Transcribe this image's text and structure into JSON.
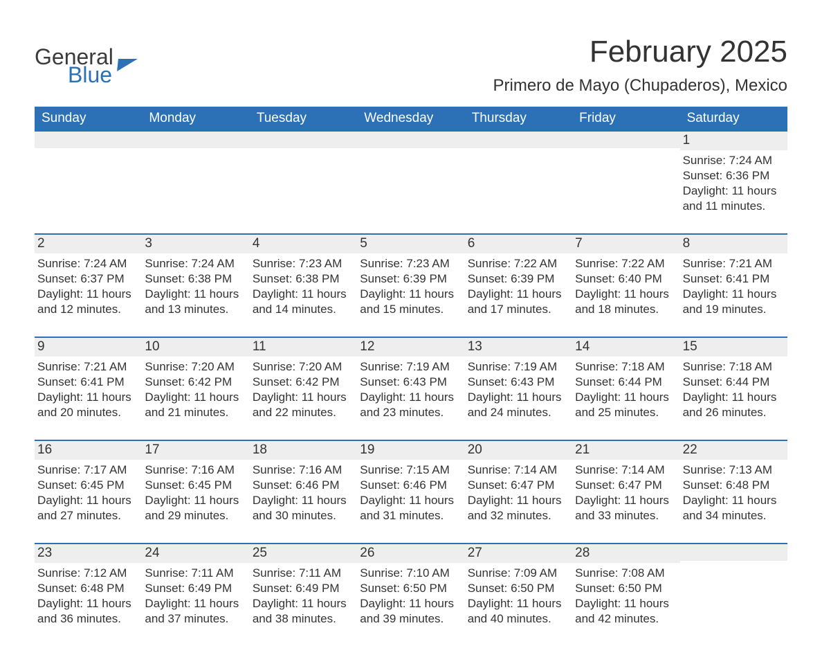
{
  "logo": {
    "text1": "General",
    "text2": "Blue"
  },
  "title": "February 2025",
  "location": "Primero de Mayo (Chupaderos), Mexico",
  "colors": {
    "header_bg": "#2c71b6",
    "header_text": "#ffffff",
    "day_num_bg": "#eeeeee",
    "text": "#333333",
    "accent_line": "#2c71b6",
    "background": "#ffffff"
  },
  "typography": {
    "title_fontsize": 44,
    "location_fontsize": 24,
    "dow_fontsize": 19,
    "body_fontsize": 17
  },
  "days_of_week": [
    "Sunday",
    "Monday",
    "Tuesday",
    "Wednesday",
    "Thursday",
    "Friday",
    "Saturday"
  ],
  "labels": {
    "sunrise": "Sunrise:",
    "sunset": "Sunset:",
    "daylight": "Daylight:"
  },
  "weeks": [
    [
      null,
      null,
      null,
      null,
      null,
      null,
      {
        "n": "1",
        "sunrise": "7:24 AM",
        "sunset": "6:36 PM",
        "daylight": "11 hours and 11 minutes."
      }
    ],
    [
      {
        "n": "2",
        "sunrise": "7:24 AM",
        "sunset": "6:37 PM",
        "daylight": "11 hours and 12 minutes."
      },
      {
        "n": "3",
        "sunrise": "7:24 AM",
        "sunset": "6:38 PM",
        "daylight": "11 hours and 13 minutes."
      },
      {
        "n": "4",
        "sunrise": "7:23 AM",
        "sunset": "6:38 PM",
        "daylight": "11 hours and 14 minutes."
      },
      {
        "n": "5",
        "sunrise": "7:23 AM",
        "sunset": "6:39 PM",
        "daylight": "11 hours and 15 minutes."
      },
      {
        "n": "6",
        "sunrise": "7:22 AM",
        "sunset": "6:39 PM",
        "daylight": "11 hours and 17 minutes."
      },
      {
        "n": "7",
        "sunrise": "7:22 AM",
        "sunset": "6:40 PM",
        "daylight": "11 hours and 18 minutes."
      },
      {
        "n": "8",
        "sunrise": "7:21 AM",
        "sunset": "6:41 PM",
        "daylight": "11 hours and 19 minutes."
      }
    ],
    [
      {
        "n": "9",
        "sunrise": "7:21 AM",
        "sunset": "6:41 PM",
        "daylight": "11 hours and 20 minutes."
      },
      {
        "n": "10",
        "sunrise": "7:20 AM",
        "sunset": "6:42 PM",
        "daylight": "11 hours and 21 minutes."
      },
      {
        "n": "11",
        "sunrise": "7:20 AM",
        "sunset": "6:42 PM",
        "daylight": "11 hours and 22 minutes."
      },
      {
        "n": "12",
        "sunrise": "7:19 AM",
        "sunset": "6:43 PM",
        "daylight": "11 hours and 23 minutes."
      },
      {
        "n": "13",
        "sunrise": "7:19 AM",
        "sunset": "6:43 PM",
        "daylight": "11 hours and 24 minutes."
      },
      {
        "n": "14",
        "sunrise": "7:18 AM",
        "sunset": "6:44 PM",
        "daylight": "11 hours and 25 minutes."
      },
      {
        "n": "15",
        "sunrise": "7:18 AM",
        "sunset": "6:44 PM",
        "daylight": "11 hours and 26 minutes."
      }
    ],
    [
      {
        "n": "16",
        "sunrise": "7:17 AM",
        "sunset": "6:45 PM",
        "daylight": "11 hours and 27 minutes."
      },
      {
        "n": "17",
        "sunrise": "7:16 AM",
        "sunset": "6:45 PM",
        "daylight": "11 hours and 29 minutes."
      },
      {
        "n": "18",
        "sunrise": "7:16 AM",
        "sunset": "6:46 PM",
        "daylight": "11 hours and 30 minutes."
      },
      {
        "n": "19",
        "sunrise": "7:15 AM",
        "sunset": "6:46 PM",
        "daylight": "11 hours and 31 minutes."
      },
      {
        "n": "20",
        "sunrise": "7:14 AM",
        "sunset": "6:47 PM",
        "daylight": "11 hours and 32 minutes."
      },
      {
        "n": "21",
        "sunrise": "7:14 AM",
        "sunset": "6:47 PM",
        "daylight": "11 hours and 33 minutes."
      },
      {
        "n": "22",
        "sunrise": "7:13 AM",
        "sunset": "6:48 PM",
        "daylight": "11 hours and 34 minutes."
      }
    ],
    [
      {
        "n": "23",
        "sunrise": "7:12 AM",
        "sunset": "6:48 PM",
        "daylight": "11 hours and 36 minutes."
      },
      {
        "n": "24",
        "sunrise": "7:11 AM",
        "sunset": "6:49 PM",
        "daylight": "11 hours and 37 minutes."
      },
      {
        "n": "25",
        "sunrise": "7:11 AM",
        "sunset": "6:49 PM",
        "daylight": "11 hours and 38 minutes."
      },
      {
        "n": "26",
        "sunrise": "7:10 AM",
        "sunset": "6:50 PM",
        "daylight": "11 hours and 39 minutes."
      },
      {
        "n": "27",
        "sunrise": "7:09 AM",
        "sunset": "6:50 PM",
        "daylight": "11 hours and 40 minutes."
      },
      {
        "n": "28",
        "sunrise": "7:08 AM",
        "sunset": "6:50 PM",
        "daylight": "11 hours and 42 minutes."
      },
      null
    ]
  ]
}
